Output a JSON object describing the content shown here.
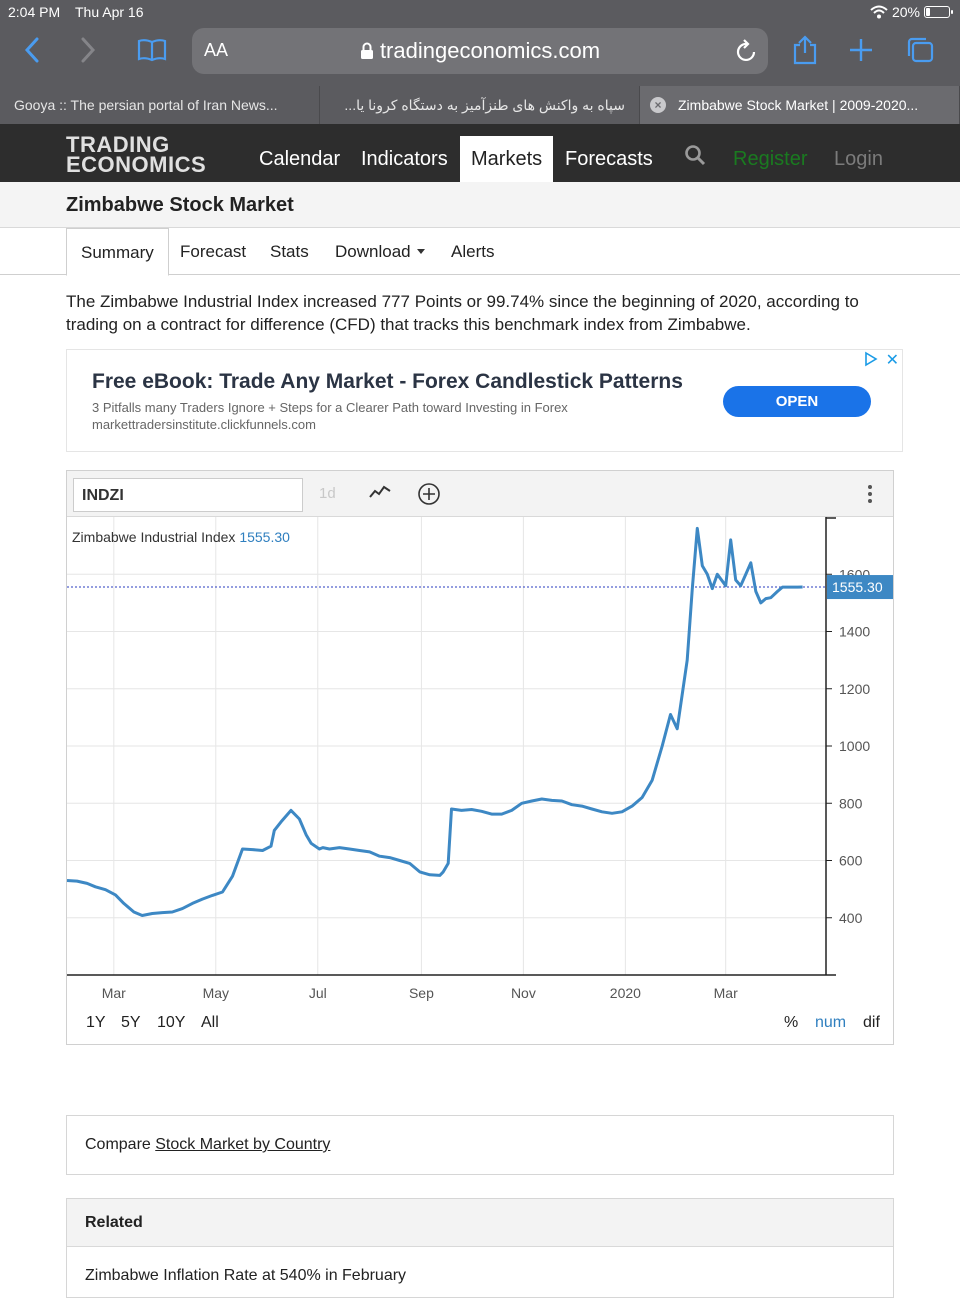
{
  "status": {
    "time": "2:04 PM",
    "date": "Thu Apr 16",
    "battery": "20%"
  },
  "browser": {
    "aa_label": "AA",
    "url": "tradingeconomics.com",
    "tabs": [
      {
        "title": "Gooya :: The persian portal of Iran News..."
      },
      {
        "title": "سپاه به واکنش های طنزآمیز به دستگاه کرونا یا..."
      },
      {
        "title": "Zimbabwe Stock Market | 2009-2020..."
      }
    ]
  },
  "site": {
    "logo_line1": "TRADING",
    "logo_line2": "ECONOMICS",
    "nav": [
      "Calendar",
      "Indicators",
      "Markets",
      "Forecasts"
    ],
    "register": "Register",
    "login": "Login"
  },
  "page": {
    "title": "Zimbabwe Stock Market",
    "subtabs": [
      "Summary",
      "Forecast",
      "Stats",
      "Download",
      "Alerts"
    ],
    "intro": "The Zimbabwe Industrial Index increased 777 Points or 99.74% since the beginning of 2020, according to trading on a contract for difference (CFD) that tracks this benchmark index from Zimbabwe."
  },
  "ad": {
    "title": "Free eBook: Trade Any Market - Forex Candlestick Patterns",
    "subtitle": "3 Pitfalls many Traders Ignore + Steps for a Clearer Path toward Investing in Forex",
    "domain": "markettradersinstitute.clickfunnels.com",
    "cta": "OPEN",
    "close": "✕"
  },
  "chart_toolbar": {
    "symbol": "INDZI",
    "interval": "1d"
  },
  "chart_data": {
    "type": "line",
    "legend_name": "Zimbabwe Industrial Index",
    "legend_value": "1555.30",
    "current_value_label": "1555.30",
    "current_value": 1555.3,
    "line_color": "#3d88c4",
    "ylim": [
      200,
      1800
    ],
    "y_ticks": [
      400,
      600,
      800,
      1000,
      1200,
      1400,
      1600
    ],
    "x_tick_labels": [
      "Mar",
      "May",
      "Jul",
      "Sep",
      "Nov",
      "2020",
      "Mar"
    ],
    "x_tick_dates": [
      "2019-03-01",
      "2019-05-01",
      "2019-07-01",
      "2019-09-01",
      "2019-11-01",
      "2020-01-01",
      "2020-03-01"
    ],
    "x_range": [
      "2019-02-01",
      "2020-04-30"
    ],
    "grid": true,
    "series": [
      {
        "x": [
          "2019-02-01",
          "2019-02-07",
          "2019-02-13",
          "2019-02-18",
          "2019-02-24",
          "2019-03-02",
          "2019-03-07",
          "2019-03-13",
          "2019-03-18",
          "2019-03-24",
          "2019-03-30",
          "2019-04-05",
          "2019-04-11",
          "2019-04-17",
          "2019-04-23",
          "2019-04-29",
          "2019-05-05",
          "2019-05-11",
          "2019-05-17",
          "2019-05-23",
          "2019-05-29",
          "2019-06-03",
          "2019-06-05",
          "2019-06-09",
          "2019-06-15",
          "2019-06-20",
          "2019-06-24",
          "2019-06-27",
          "2019-07-02",
          "2019-07-04",
          "2019-07-08",
          "2019-07-14",
          "2019-07-20",
          "2019-07-26",
          "2019-08-01",
          "2019-08-07",
          "2019-08-13",
          "2019-08-19",
          "2019-08-25",
          "2019-08-31",
          "2019-09-06",
          "2019-09-12",
          "2019-09-14",
          "2019-09-17",
          "2019-09-19",
          "2019-09-25",
          "2019-10-01",
          "2019-10-07",
          "2019-10-13",
          "2019-10-19",
          "2019-10-25",
          "2019-10-31",
          "2019-11-06",
          "2019-11-12",
          "2019-11-18",
          "2019-11-24",
          "2019-11-30",
          "2019-12-06",
          "2019-12-12",
          "2019-12-18",
          "2019-12-24",
          "2019-12-30",
          "2020-01-05",
          "2020-01-11",
          "2020-01-17",
          "2020-01-23",
          "2020-01-28",
          "2020-02-01",
          "2020-02-04",
          "2020-02-07",
          "2020-02-10",
          "2020-02-13",
          "2020-02-16",
          "2020-02-19",
          "2020-02-22",
          "2020-02-25",
          "2020-03-01",
          "2020-03-04",
          "2020-03-07",
          "2020-03-10",
          "2020-03-13",
          "2020-03-16",
          "2020-03-19",
          "2020-03-22",
          "2020-03-25",
          "2020-03-28",
          "2020-04-01",
          "2020-04-04",
          "2020-04-07",
          "2020-04-10",
          "2020-04-13",
          "2020-04-16"
        ],
        "y": [
          530,
          528,
          520,
          508,
          498,
          480,
          450,
          420,
          408,
          415,
          418,
          420,
          432,
          450,
          465,
          478,
          490,
          545,
          640,
          638,
          635,
          650,
          705,
          735,
          775,
          745,
          690,
          660,
          640,
          645,
          640,
          645,
          640,
          635,
          630,
          615,
          610,
          600,
          590,
          560,
          550,
          548,
          560,
          590,
          780,
          775,
          778,
          772,
          762,
          762,
          775,
          800,
          808,
          815,
          810,
          808,
          795,
          790,
          780,
          770,
          765,
          770,
          790,
          820,
          880,
          1000,
          1110,
          1060,
          1180,
          1300,
          1550,
          1760,
          1630,
          1600,
          1550,
          1600,
          1560,
          1720,
          1580,
          1560,
          1600,
          1640,
          1540,
          1500,
          1515,
          1518,
          1540,
          1555,
          1555,
          1555,
          1555,
          1555.3
        ]
      }
    ]
  },
  "chart_footer": {
    "ranges": [
      "1Y",
      "5Y",
      "10Y",
      "All"
    ],
    "modes": [
      "%",
      "num",
      "dif"
    ]
  },
  "compare": {
    "prefix": "Compare ",
    "link": "Stock Market by Country"
  },
  "related": {
    "title": "Related",
    "item": "Zimbabwe Inflation Rate at 540% in February"
  }
}
